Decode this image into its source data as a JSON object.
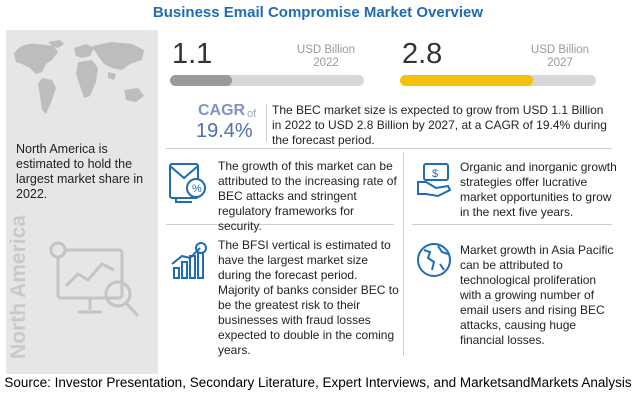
{
  "title": "Business Email Compromise Market Overview",
  "left_panel": {
    "region_vertical": "North America",
    "region_text": "North America is estimated to hold the largest market share in 2022."
  },
  "market": {
    "v2022": "1.1",
    "unit2022_line1": "USD Billion",
    "unit2022_line2": "2022",
    "v2027": "2.8",
    "unit2027_line1": "USD Billion",
    "unit2027_line2": "2027",
    "cagr_label": "CAGR",
    "cagr_of": "of",
    "cagr_value": "19.4%",
    "cagr_text": "The BEC market size is expected to grow from USD 1.1 Billion in 2022 to USD 2.8 Billion by 2027, at a CAGR of 19.4% during the forecast period."
  },
  "insights": [
    {
      "icon": "bec-attack-icon",
      "text": "The growth of this market can be attributed to the increasing rate of BEC attacks and stringent regulatory frameworks for security."
    },
    {
      "icon": "money-strategy-icon",
      "text": "Organic and inorganic growth strategies offer lucrative market opportunities to grow in the next five years."
    },
    {
      "icon": "bfsi-growth-icon",
      "text": "The BFSI vertical is estimated to have the largest market size during the forecast period. Majority of banks consider BEC to be the greatest risk to their businesses with fraud losses expected to double in the coming years."
    },
    {
      "icon": "globe-icon",
      "text": "Market growth in Asia Pacific can be attributed to technological proliferation with a growing number of email users and rising BEC attacks, causing huge financial losses."
    }
  ],
  "source": "Source: Investor Presentation, Secondary Literature, Expert Interviews, and MarketsandMarkets Analysis",
  "colors": {
    "title": "#1f6cb5",
    "bar2022": "#9a9a9a",
    "bar2027": "#f4c20d",
    "cagr": "#4e6fb0",
    "panel": "#e6e6e6"
  },
  "chart_data": {
    "type": "bar",
    "categories": [
      "2022",
      "2027"
    ],
    "values": [
      1.1,
      2.8
    ],
    "unit": "USD Billion",
    "title": "Business Email Compromise Market Overview",
    "cagr": "19.4%"
  }
}
